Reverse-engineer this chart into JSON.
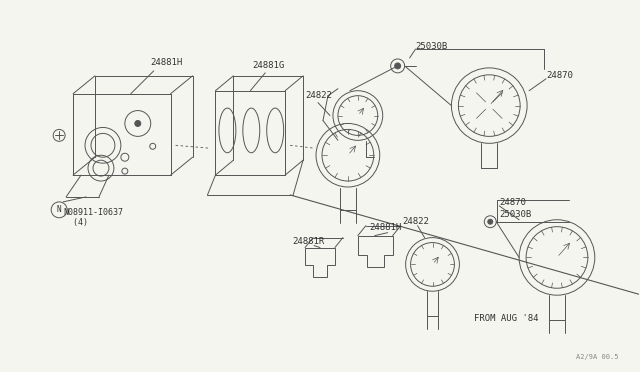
{
  "bg_color": "#f5f5f0",
  "line_color": "#555555",
  "text_color": "#333333",
  "fig_width": 6.4,
  "fig_height": 3.72,
  "dpi": 100,
  "watermark": "A2/9A 00.5",
  "labels": {
    "24881H_top": "24881H",
    "24881G": "24881G",
    "24822_top": "24822",
    "25030B_top": "25030B",
    "24870_top": "24870",
    "N08911": "N08911-I0637\n  (4)",
    "24881H_bot": "24881H",
    "24881R": "24881R",
    "24822_bot": "24822",
    "24870_bot": "24870",
    "25030B_bot": "25030B",
    "from_aug": "FROM AUG '84"
  },
  "gray": "#aaaaaa",
  "darkgray": "#888888"
}
